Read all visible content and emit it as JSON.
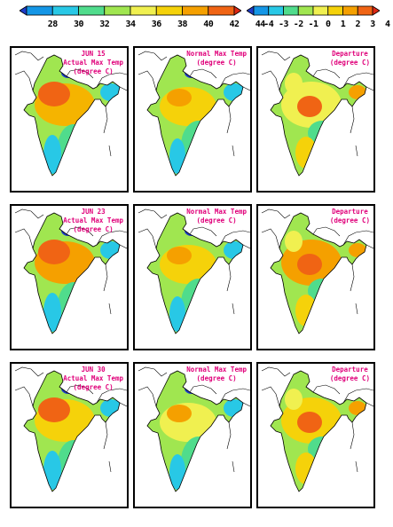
{
  "scales": {
    "actual": {
      "labels": [
        "28",
        "30",
        "32",
        "34",
        "36",
        "38",
        "40",
        "42",
        "44"
      ],
      "colors": [
        "#1e3cc8",
        "#1496e6",
        "#28c8e6",
        "#50dc8c",
        "#a0e650",
        "#f0f050",
        "#f5d20a",
        "#f5a000",
        "#f06414",
        "#dc2814"
      ]
    },
    "departure": {
      "labels": [
        "-4",
        "-3",
        "-2",
        "-1",
        "0",
        "1",
        "2",
        "3",
        "4"
      ],
      "colors": [
        "#1e3cc8",
        "#1496e6",
        "#28c8e6",
        "#50dc8c",
        "#a0e650",
        "#f0f050",
        "#f5d20a",
        "#f5a000",
        "#f06414",
        "#dc2814"
      ]
    }
  },
  "rows": [
    {
      "actual_title": [
        "JUN 15",
        "Actual Max Temp",
        "(degree C)"
      ],
      "normal_title": [
        "Normal Max Temp",
        "(degree C)"
      ],
      "departure_title": [
        "Departure",
        "(degree C)"
      ],
      "actual_fill": "#f5b400",
      "normal_fill": "#f5d20a",
      "departure_fill": "#f0f050"
    },
    {
      "actual_title": [
        "JUN 23",
        "Actual Max Temp",
        "(degree C)"
      ],
      "normal_title": [
        "Normal Max Temp",
        "(degree C)"
      ],
      "departure_title": [
        "Departure",
        "(degree C)"
      ],
      "actual_fill": "#f5a000",
      "normal_fill": "#f5d20a",
      "departure_fill": "#f5a000"
    },
    {
      "actual_title": [
        "JUN 30",
        "Actual Max Temp",
        "(degree C)"
      ],
      "normal_title": [
        "Normal Max Temp",
        "(degree C)"
      ],
      "departure_title": [
        "Departure",
        "(degree C)"
      ],
      "actual_fill": "#f5d20a",
      "normal_fill": "#f0f050",
      "departure_fill": "#f5d20a"
    }
  ]
}
